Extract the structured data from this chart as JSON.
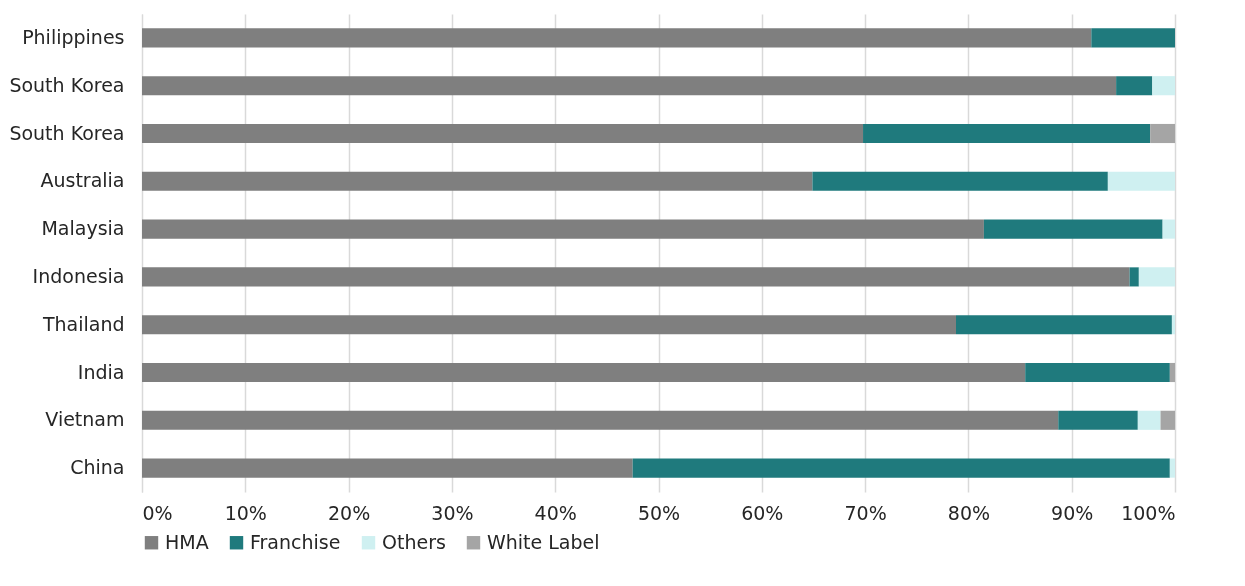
{
  "chart_data": {
    "type": "bar",
    "orientation": "horizontal",
    "stacked": true,
    "categories": [
      "Philippines",
      "South Korea",
      "South Korea",
      "Australia",
      "Malaysia",
      "Indonesia",
      "Thailand",
      "India",
      "Vietnam",
      "China"
    ],
    "series": [
      {
        "name": "HMA",
        "color": "#7f7f7f",
        "values": [
          91.9,
          94.3,
          69.8,
          64.9,
          81.5,
          95.6,
          78.8,
          85.5,
          88.7,
          47.5
        ]
      },
      {
        "name": "Franchise",
        "color": "#1f7a7d",
        "values": [
          8.1,
          3.5,
          27.8,
          28.6,
          17.3,
          0.9,
          20.9,
          14.0,
          7.7,
          52.0
        ]
      },
      {
        "name": "Others",
        "color": "#cff0f1",
        "values": [
          null,
          2.2,
          null,
          6.5,
          1.2,
          3.5,
          0.3,
          null,
          2.2,
          0.5
        ]
      },
      {
        "name": "White Label",
        "color": "#a5a5a5",
        "values": [
          null,
          null,
          2.4,
          null,
          null,
          null,
          null,
          0.5,
          1.4,
          null
        ]
      }
    ],
    "xlim": [
      0,
      100
    ],
    "xticks": [
      {
        "value": 0,
        "label": "0%"
      },
      {
        "value": 10,
        "label": "10%"
      },
      {
        "value": 20,
        "label": "20%"
      },
      {
        "value": 30,
        "label": "30%"
      },
      {
        "value": 40,
        "label": "40%"
      },
      {
        "value": 50,
        "label": "50%"
      },
      {
        "value": 60,
        "label": "60%"
      },
      {
        "value": 70,
        "label": "70%"
      },
      {
        "value": 80,
        "label": "80%"
      },
      {
        "value": 90,
        "label": "90%"
      },
      {
        "value": 100,
        "label": "100%"
      }
    ],
    "grid": "x",
    "legend": "bottom"
  }
}
